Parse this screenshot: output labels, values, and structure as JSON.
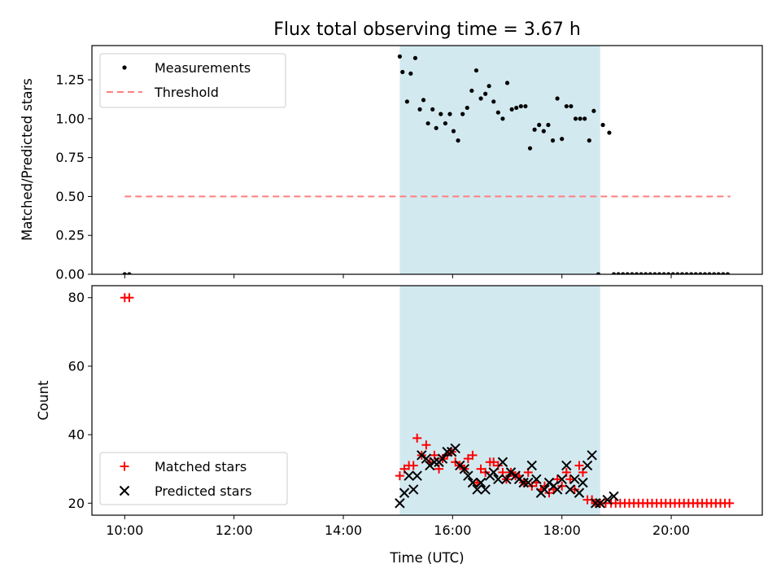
{
  "chart_data": [
    {
      "type": "scatter",
      "title": "Flux total observing time = 3.67 h",
      "xlabel": "",
      "ylabel": "Matched/Predicted stars",
      "ylim": [
        0,
        1.47
      ],
      "yticks": [
        "0.00",
        "0.25",
        "0.50",
        "0.75",
        "1.00",
        "1.25"
      ],
      "legend_position": "upper-left",
      "highlight_span": {
        "start": "15:02",
        "end": "18:42",
        "color": "#d2e9f0"
      },
      "series": [
        {
          "name": "Measurements",
          "marker": "dot",
          "color": "#000000",
          "x": [
            "10:00",
            "10:05",
            "15:02",
            "15:05",
            "15:10",
            "15:14",
            "15:19",
            "15:24",
            "15:28",
            "15:33",
            "15:38",
            "15:42",
            "15:47",
            "15:52",
            "15:57",
            "16:01",
            "16:06",
            "16:11",
            "16:16",
            "16:21",
            "16:26",
            "16:31",
            "16:36",
            "16:40",
            "16:45",
            "16:50",
            "16:55",
            "17:00",
            "17:05",
            "17:10",
            "17:15",
            "17:20",
            "17:25",
            "17:30",
            "17:35",
            "17:40",
            "17:45",
            "17:50",
            "17:55",
            "18:00",
            "18:05",
            "18:10",
            "18:15",
            "18:20",
            "18:25",
            "18:30",
            "18:35",
            "18:40",
            "18:45",
            "18:52",
            "18:57",
            "19:02",
            "19:07",
            "19:12",
            "19:17",
            "19:22",
            "19:27",
            "19:32",
            "19:37",
            "19:42",
            "19:47",
            "19:52",
            "19:57",
            "20:02",
            "20:07",
            "20:12",
            "20:17",
            "20:22",
            "20:27",
            "20:32",
            "20:37",
            "20:42",
            "20:47",
            "20:52",
            "20:57",
            "21:02"
          ],
          "y": [
            0,
            0,
            1.4,
            1.3,
            1.11,
            1.29,
            1.39,
            1.06,
            1.12,
            0.97,
            1.06,
            0.94,
            1.03,
            0.97,
            1.03,
            0.92,
            0.86,
            1.03,
            1.07,
            1.18,
            1.31,
            1.13,
            1.16,
            1.21,
            1.11,
            1.04,
            1.0,
            1.23,
            1.06,
            1.07,
            1.08,
            1.08,
            0.81,
            0.93,
            0.96,
            0.92,
            0.96,
            0.86,
            1.13,
            0.87,
            1.08,
            1.08,
            1.0,
            1.0,
            1.0,
            0.86,
            1.05,
            0,
            0.96,
            0.91,
            0,
            0,
            0,
            0,
            0,
            0,
            0,
            0,
            0,
            0,
            0,
            0,
            0,
            0,
            0,
            0,
            0,
            0,
            0,
            0,
            0,
            0,
            0,
            0,
            0,
            0
          ]
        },
        {
          "name": "Threshold",
          "line": "dashed",
          "color": "#ff7f7f",
          "x": [
            "10:00",
            "21:05"
          ],
          "y": [
            0.5,
            0.5
          ]
        }
      ]
    },
    {
      "type": "scatter",
      "title": "",
      "xlabel": "Time (UTC)",
      "ylabel": "Count",
      "ylim": [
        16.5,
        83.5
      ],
      "yticks": [
        "20",
        "40",
        "60",
        "80"
      ],
      "xlim": [
        "09:24",
        "21:40"
      ],
      "xticks": [
        "10:00",
        "12:00",
        "14:00",
        "16:00",
        "18:00",
        "20:00"
      ],
      "legend_position": "lower-left",
      "highlight_span": {
        "start": "15:02",
        "end": "18:42",
        "color": "#d2e9f0"
      },
      "series": [
        {
          "name": "Matched stars",
          "marker": "plus",
          "color": "#ff0000",
          "x": [
            "10:00",
            "10:05",
            "15:02",
            "15:07",
            "15:12",
            "15:17",
            "15:21",
            "15:26",
            "15:31",
            "15:35",
            "15:40",
            "15:45",
            "15:49",
            "15:54",
            "15:59",
            "16:03",
            "16:08",
            "16:13",
            "16:17",
            "16:22",
            "16:27",
            "16:31",
            "16:36",
            "16:41",
            "16:45",
            "16:50",
            "16:55",
            "16:59",
            "17:04",
            "17:09",
            "17:13",
            "17:18",
            "17:23",
            "17:27",
            "17:32",
            "17:37",
            "17:41",
            "17:46",
            "17:51",
            "17:55",
            "18:00",
            "18:05",
            "18:09",
            "18:14",
            "18:19",
            "18:23",
            "18:28",
            "18:33",
            "18:37",
            "18:42",
            "18:48",
            "18:54",
            "18:59",
            "19:04",
            "19:09",
            "19:14",
            "19:19",
            "19:24",
            "19:29",
            "19:34",
            "19:39",
            "19:44",
            "19:49",
            "19:54",
            "19:59",
            "20:04",
            "20:09",
            "20:14",
            "20:19",
            "20:24",
            "20:29",
            "20:34",
            "20:39",
            "20:44",
            "20:49",
            "20:54",
            "20:59",
            "21:04"
          ],
          "y": [
            80,
            80,
            28,
            30,
            31,
            31,
            39,
            34,
            37,
            32,
            34,
            30,
            33,
            34,
            35,
            32,
            31,
            30,
            33,
            34,
            26,
            30,
            29,
            32,
            32,
            31,
            29,
            27,
            29,
            28,
            28,
            26,
            29,
            25,
            26,
            24,
            25,
            23,
            24,
            27,
            25,
            29,
            27,
            24,
            31,
            29,
            21,
            21,
            20,
            20,
            20,
            20,
            20,
            20,
            20,
            20,
            20,
            20,
            20,
            20,
            20,
            20,
            20,
            20,
            20,
            20,
            20,
            20,
            20,
            20,
            20,
            20,
            20,
            20,
            20,
            20,
            20,
            20
          ]
        },
        {
          "name": "Predicted stars",
          "marker": "x",
          "color": "#000000",
          "x": [
            "15:02",
            "15:07",
            "15:12",
            "15:17",
            "15:21",
            "15:26",
            "15:31",
            "15:35",
            "15:40",
            "15:45",
            "15:49",
            "15:54",
            "15:59",
            "16:03",
            "16:08",
            "16:13",
            "16:17",
            "16:22",
            "16:27",
            "16:31",
            "16:36",
            "16:41",
            "16:45",
            "16:50",
            "16:55",
            "16:59",
            "17:04",
            "17:09",
            "17:13",
            "17:18",
            "17:23",
            "17:27",
            "17:32",
            "17:37",
            "17:41",
            "17:46",
            "17:51",
            "17:55",
            "18:00",
            "18:05",
            "18:09",
            "18:14",
            "18:19",
            "18:23",
            "18:28",
            "18:33",
            "18:37",
            "18:42",
            "18:50",
            "18:57"
          ],
          "y": [
            20,
            23,
            28,
            24,
            28,
            34,
            33,
            31,
            32,
            32,
            33,
            35,
            35,
            36,
            31,
            30,
            28,
            26,
            24,
            26,
            24,
            28,
            29,
            27,
            32,
            27,
            29,
            28,
            27,
            26,
            26,
            31,
            27,
            23,
            24,
            26,
            25,
            24,
            27,
            31,
            24,
            27,
            23,
            26,
            31,
            34,
            20,
            20,
            21,
            22
          ]
        }
      ]
    }
  ]
}
